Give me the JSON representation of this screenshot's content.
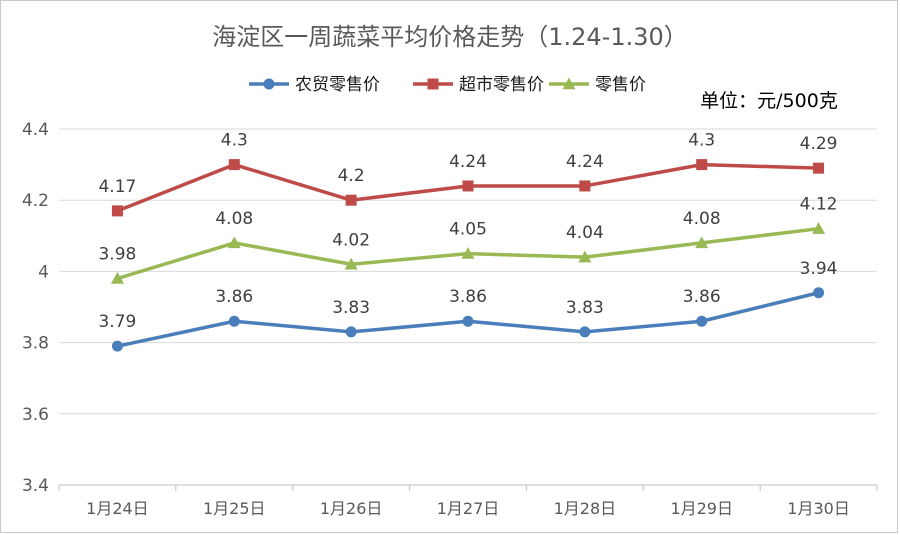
{
  "chart_data": {
    "type": "line",
    "title": "海淀区一周蔬菜平均价格走势（1.24-1.30）",
    "unit_note": "单位：元/500克",
    "xlabel": "",
    "ylabel": "",
    "categories": [
      "1月24日",
      "1月25日",
      "1月26日",
      "1月27日",
      "1月28日",
      "1月29日",
      "1月30日"
    ],
    "ylim": [
      3.4,
      4.4
    ],
    "yticks": [
      "3.4",
      "3.6",
      "3.8",
      "4",
      "4.2",
      "4.4"
    ],
    "grid": true,
    "legend_position": "top",
    "series": [
      {
        "name": "农贸零售价",
        "color": "#4a7ebb",
        "marker": "circle",
        "values": [
          3.79,
          3.86,
          3.83,
          3.86,
          3.83,
          3.86,
          3.94
        ],
        "labels": [
          "3.79",
          "3.86",
          "3.83",
          "3.86",
          "3.83",
          "3.86",
          "3.94"
        ]
      },
      {
        "name": "超市零售价",
        "color": "#be4b48",
        "marker": "square",
        "values": [
          4.17,
          4.3,
          4.2,
          4.24,
          4.24,
          4.3,
          4.29
        ],
        "labels": [
          "4.17",
          "4.3",
          "4.2",
          "4.24",
          "4.24",
          "4.3",
          "4.29"
        ]
      },
      {
        "name": "零售价",
        "color": "#98b954",
        "marker": "triangle",
        "values": [
          3.98,
          4.08,
          4.02,
          4.05,
          4.04,
          4.08,
          4.12
        ],
        "labels": [
          "3.98",
          "4.08",
          "4.02",
          "4.05",
          "4.04",
          "4.08",
          "4.12"
        ]
      }
    ]
  }
}
